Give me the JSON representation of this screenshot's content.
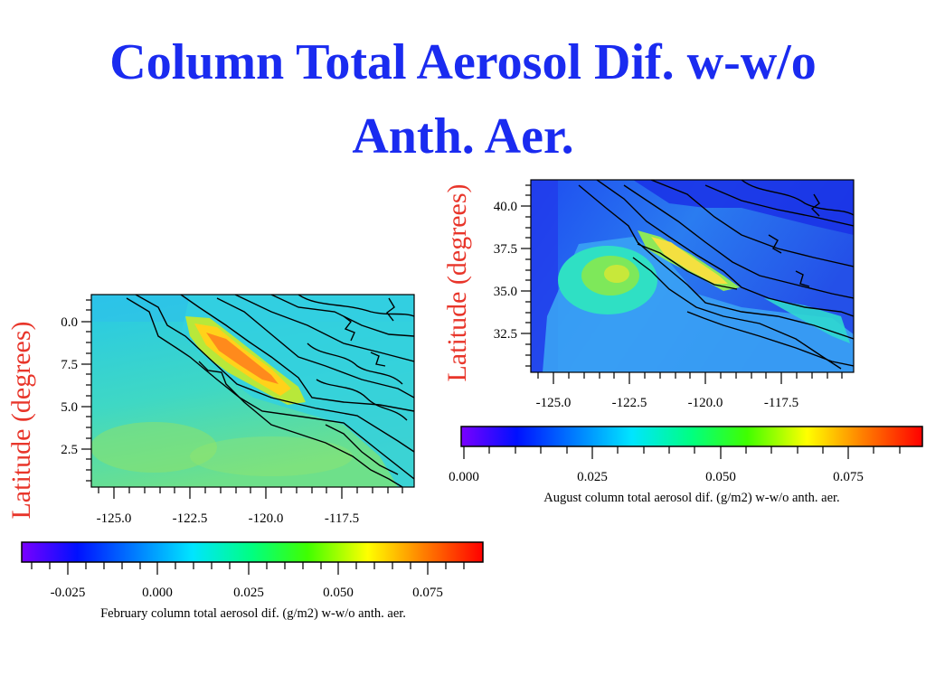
{
  "title": {
    "line1": "Column Total Aerosol Dif. w-w/o",
    "line2": "Anth. Aer."
  },
  "colors": {
    "title": "#1a2bf0",
    "axis_label": "#e8352a",
    "colorbar_stops": [
      "#7a00ff",
      "#0010ff",
      "#0080ff",
      "#00e5ff",
      "#00ff80",
      "#40ff00",
      "#ffff00",
      "#ff8000",
      "#ff0000"
    ]
  },
  "chart_data": [
    {
      "type": "heatmap",
      "name": "February",
      "ylabel": "Latitude (degrees)",
      "x_ticks": [
        "-125.0",
        "-122.5",
        "-120.0",
        "-117.5"
      ],
      "y_ticks": [
        "0.0",
        "7.5",
        "5.0",
        "2.5"
      ],
      "colorbar": {
        "ticks": [
          "-0.025",
          "0.000",
          "0.025",
          "0.050",
          "0.075"
        ],
        "label": "February column total aerosol dif. (g/m2) w-w/o anth. aer.",
        "range": [
          -0.038,
          0.09
        ]
      },
      "overlay": "terrain contours"
    },
    {
      "type": "heatmap",
      "name": "August",
      "ylabel": "Latitude (degrees)",
      "x_ticks": [
        "-125.0",
        "-122.5",
        "-120.0",
        "-117.5"
      ],
      "y_ticks": [
        "40.0",
        "37.5",
        "35.0",
        "32.5"
      ],
      "colorbar": {
        "ticks": [
          "0.000",
          "0.025",
          "0.050",
          "0.075"
        ],
        "label": "August column total aerosol dif. (g/m2) w-w/o anth. aer.",
        "range": [
          -0.004,
          0.09
        ]
      },
      "overlay": "terrain contours"
    }
  ]
}
